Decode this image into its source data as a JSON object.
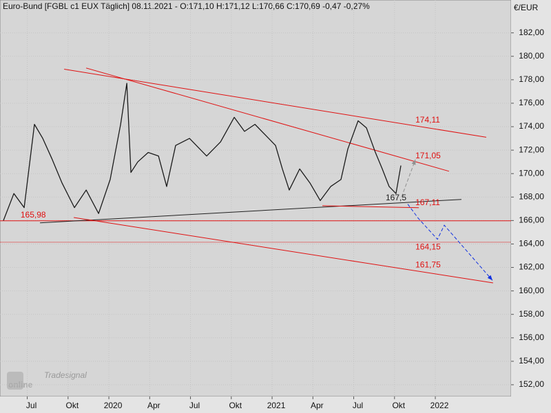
{
  "chart_data": {
    "type": "line",
    "title": "Euro-Bund [FGBL c1 EUX  Täglich] 08.11.2021 - O:171,10 H:171,12 L:170,66 C:170,69 -0,47 -0,27%",
    "unit": "€/EUR",
    "logo": {
      "brand": "Tradesignal",
      "name": "online"
    },
    "xlim": [
      2019.333,
      2022.464
    ],
    "xticks": [
      {
        "value": 2019.5,
        "label": "Jul"
      },
      {
        "value": 2019.75,
        "label": "Okt"
      },
      2020,
      {
        "value": 2020.25,
        "label": "Apr"
      },
      {
        "value": 2020.5,
        "label": "Jul"
      },
      {
        "value": 2020.75,
        "label": "Okt"
      },
      2021,
      {
        "value": 2021.25,
        "label": "Apr"
      },
      {
        "value": 2021.5,
        "label": "Jul"
      },
      {
        "value": 2021.75,
        "label": "Okt"
      },
      2022
    ],
    "ylim": [
      151,
      184.8
    ],
    "yticks": [
      {
        "value": 152,
        "label": "152,00"
      },
      {
        "value": 154,
        "label": "154,00"
      },
      {
        "value": 156,
        "label": "156,00"
      },
      {
        "value": 158,
        "label": "158,00"
      },
      {
        "value": 160,
        "label": "160,00"
      },
      {
        "value": 162,
        "label": "162,00"
      },
      {
        "value": 164,
        "label": "164,00"
      },
      {
        "value": 166,
        "label": "166,00"
      },
      {
        "value": 168,
        "label": "168,00"
      },
      {
        "value": 170,
        "label": "170,00"
      },
      {
        "value": 172,
        "label": "172,00"
      },
      {
        "value": 174,
        "label": "174,00"
      },
      {
        "value": 176,
        "label": "176,00"
      },
      {
        "value": 178,
        "label": "178,00"
      },
      {
        "value": 180,
        "label": "180,00"
      },
      {
        "value": 182,
        "label": "182,00"
      }
    ],
    "grid": true,
    "series": [
      {
        "name": "FGBL c1",
        "color": "#1a1a1a",
        "x": [
          2019.354,
          2019.418,
          2019.481,
          2019.544,
          2019.595,
          2019.65,
          2019.713,
          2019.789,
          2019.861,
          2019.937,
          2020.008,
          2020.072,
          2020.11,
          2020.135,
          2020.177,
          2020.241,
          2020.304,
          2020.354,
          2020.409,
          2020.494,
          2020.599,
          2020.684,
          2020.768,
          2020.831,
          2020.895,
          2020.958,
          2021.021,
          2021.063,
          2021.105,
          2021.169,
          2021.232,
          2021.295,
          2021.359,
          2021.422,
          2021.464,
          2021.527,
          2021.578,
          2021.633,
          2021.675,
          2021.717,
          2021.759,
          2021.789
        ],
        "values": [
          166.0,
          168.3,
          167.1,
          174.2,
          173.0,
          171.3,
          169.2,
          167.1,
          168.6,
          166.6,
          169.5,
          174.2,
          177.7,
          170.1,
          171.0,
          171.8,
          171.5,
          168.9,
          172.4,
          173.0,
          171.5,
          172.7,
          174.8,
          173.6,
          174.2,
          173.3,
          172.4,
          170.4,
          168.6,
          170.4,
          169.2,
          167.7,
          168.9,
          169.5,
          172.1,
          174.5,
          173.9,
          171.8,
          170.4,
          168.9,
          168.3,
          170.69
        ]
      }
    ],
    "trendlines": [
      {
        "color": "#e01010",
        "x": [
          2019.726,
          2022.312
        ],
        "y": [
          178.9,
          173.1
        ]
      },
      {
        "color": "#e01010",
        "x": [
          2019.861,
          2022.084
        ],
        "y": [
          179.0,
          170.2
        ]
      },
      {
        "color": "#202020",
        "x": [
          2019.578,
          2022.16
        ],
        "y": [
          165.8,
          167.8
        ]
      },
      {
        "color": "#e01010",
        "x": [
          2021.308,
          2021.899
        ],
        "y": [
          167.26,
          167.09
        ]
      },
      {
        "color": "#e01010",
        "x": [
          2019.785,
          2022.354
        ],
        "y": [
          166.26,
          160.68
        ]
      }
    ],
    "hlines": [
      {
        "value": 165.98,
        "color": "#e01010",
        "style": "solid"
      },
      {
        "value": 164.15,
        "color": "#e01010",
        "style": "dotted"
      }
    ],
    "projections": [
      {
        "color": "#909090",
        "x": [
          2021.793,
          2021.878
        ],
        "y": [
          168.0,
          171.2
        ]
      },
      {
        "color": "#1030e0",
        "x": [
          2021.831,
          2021.895,
          2022.013,
          2022.055,
          2022.35
        ],
        "y": [
          167.4,
          166.2,
          164.4,
          165.6,
          160.9
        ]
      }
    ],
    "annotations": [
      {
        "text": "174,11",
        "x": 2021.878,
        "y": 174.55,
        "color": "#e01010"
      },
      {
        "text": "171,05",
        "x": 2021.878,
        "y": 171.5,
        "color": "#e01010"
      },
      {
        "text": "167,11",
        "x": 2021.878,
        "y": 167.5,
        "color": "#e01010"
      },
      {
        "text": "167,5",
        "x": 2021.696,
        "y": 167.9,
        "color": "#202020"
      },
      {
        "text": "165,98",
        "x": 2019.459,
        "y": 166.45,
        "color": "#e01010"
      },
      {
        "text": "164,15",
        "x": 2021.878,
        "y": 163.7,
        "color": "#e01010"
      },
      {
        "text": "161,75",
        "x": 2021.878,
        "y": 162.2,
        "color": "#e01010"
      }
    ]
  }
}
